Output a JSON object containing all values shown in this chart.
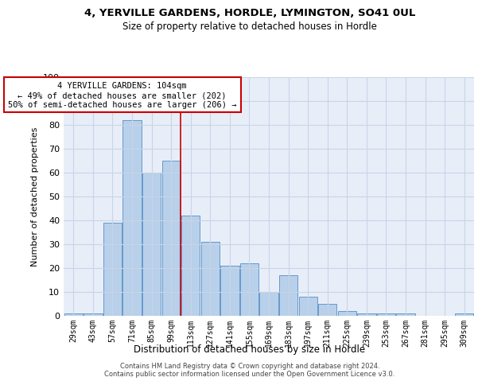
{
  "title": "4, YERVILLE GARDENS, HORDLE, LYMINGTON, SO41 0UL",
  "subtitle": "Size of property relative to detached houses in Hordle",
  "xlabel": "Distribution of detached houses by size in Hordle",
  "ylabel": "Number of detached properties",
  "categories": [
    "29sqm",
    "43sqm",
    "57sqm",
    "71sqm",
    "85sqm",
    "99sqm",
    "113sqm",
    "127sqm",
    "141sqm",
    "155sqm",
    "169sqm",
    "183sqm",
    "197sqm",
    "211sqm",
    "225sqm",
    "239sqm",
    "253sqm",
    "267sqm",
    "281sqm",
    "295sqm",
    "309sqm"
  ],
  "values": [
    1,
    1,
    39,
    82,
    60,
    65,
    42,
    31,
    21,
    22,
    10,
    17,
    8,
    5,
    2,
    1,
    1,
    1,
    0,
    0,
    1
  ],
  "bar_color": "#b8d0ea",
  "bar_edge_color": "#6699cc",
  "property_line_x": 5.5,
  "annotation_text": "4 YERVILLE GARDENS: 104sqm\n← 49% of detached houses are smaller (202)\n50% of semi-detached houses are larger (206) →",
  "annotation_box_color": "#ffffff",
  "annotation_box_edge_color": "#cc0000",
  "annotation_line_color": "#cc0000",
  "ylim": [
    0,
    100
  ],
  "yticks": [
    0,
    10,
    20,
    30,
    40,
    50,
    60,
    70,
    80,
    90,
    100
  ],
  "grid_color": "#c8d4e8",
  "background_color": "#e8eef8",
  "footer_line1": "Contains HM Land Registry data © Crown copyright and database right 2024.",
  "footer_line2": "Contains public sector information licensed under the Open Government Licence v3.0."
}
